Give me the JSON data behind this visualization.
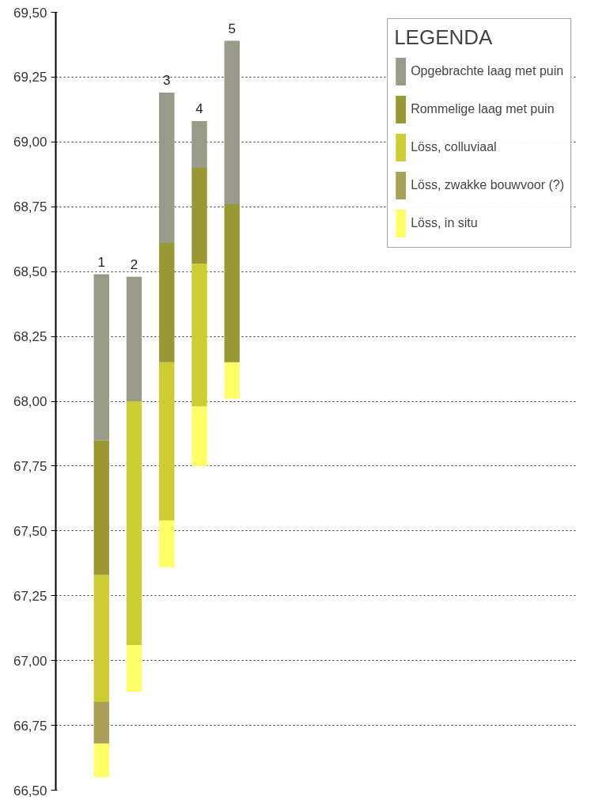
{
  "chart_data": {
    "type": "bar",
    "legend_title": "LEGENDA",
    "legend": "right",
    "grid": "y",
    "categories": [
      "1",
      "2",
      "3",
      "4",
      "5"
    ],
    "series": [
      {
        "name": "Löss, in situ",
        "color": "#ffff66",
        "base": [
          66.55,
          66.88,
          67.36,
          67.75,
          68.01
        ],
        "values": [
          0.13,
          0.18,
          0.18,
          0.23,
          0.14
        ]
      },
      {
        "name": "Löss, zwakke bouwvoor (?)",
        "color": "#a6a25a",
        "base": [
          66.68,
          null,
          null,
          null,
          null
        ],
        "values": [
          0.16,
          null,
          null,
          null,
          null
        ]
      },
      {
        "name": "Löss, colluviaal",
        "color": "#cccc33",
        "base": [
          66.84,
          67.06,
          67.54,
          67.98,
          null
        ],
        "values": [
          0.49,
          0.94,
          0.61,
          0.55,
          null
        ]
      },
      {
        "name": "Rommelige laag met puin",
        "color": "#999933",
        "base": [
          67.33,
          null,
          68.15,
          68.53,
          68.15
        ],
        "values": [
          0.52,
          null,
          0.46,
          0.37,
          0.61
        ]
      },
      {
        "name": "Opgebrachte laag met puin",
        "color": "#9a9a88",
        "base": [
          67.85,
          68.0,
          68.61,
          68.9,
          68.76
        ],
        "values": [
          0.64,
          0.48,
          0.58,
          0.18,
          0.63
        ]
      }
    ],
    "ylim": [
      66.5,
      69.5
    ],
    "yticks": [
      {
        "value": 66.5,
        "label": "66,50"
      },
      {
        "value": 66.75,
        "label": "66,75"
      },
      {
        "value": 67.0,
        "label": "67,00"
      },
      {
        "value": 67.25,
        "label": "67,25"
      },
      {
        "value": 67.5,
        "label": "67,50"
      },
      {
        "value": 67.75,
        "label": "67,75"
      },
      {
        "value": 68.0,
        "label": "68,00"
      },
      {
        "value": 68.25,
        "label": "68,25"
      },
      {
        "value": 68.5,
        "label": "68,50"
      },
      {
        "value": 68.75,
        "label": "68,75"
      },
      {
        "value": 69.0,
        "label": "69,00"
      },
      {
        "value": 69.25,
        "label": "69,25"
      },
      {
        "value": 69.5,
        "label": "69,50"
      }
    ]
  }
}
